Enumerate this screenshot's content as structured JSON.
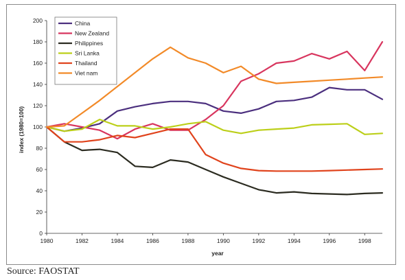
{
  "source_note": "Source: FAOSTAT",
  "chart_data": {
    "type": "line",
    "title": "",
    "xlabel": "year",
    "ylabel": "index (1980=100)",
    "ylim": [
      0,
      200
    ],
    "xlim": [
      1980,
      1999
    ],
    "yticks": [
      "0",
      "20",
      "40",
      "60",
      "80",
      "100",
      "120",
      "140",
      "160",
      "180",
      "200"
    ],
    "xticks": [
      "1980",
      "1982",
      "1984",
      "1986",
      "1988",
      "1990",
      "1992",
      "1994",
      "1996",
      "1998"
    ],
    "grid": false,
    "legend": "top-left",
    "x": [
      1980,
      1981,
      1982,
      1983,
      1984,
      1985,
      1986,
      1987,
      1988,
      1989,
      1990,
      1991,
      1992,
      1993,
      1994,
      1995,
      1996,
      1997,
      1998,
      1999
    ],
    "series": [
      {
        "name": "China",
        "color": "#4b2f7e",
        "values": [
          100,
          96,
          99,
          103,
          115,
          119,
          122,
          124,
          124,
          122,
          115,
          113,
          117,
          124,
          125,
          128,
          137,
          135,
          135,
          126
        ]
      },
      {
        "name": "New Zealand",
        "color": "#d8355e",
        "values": [
          100,
          103,
          100,
          97,
          89,
          98,
          103,
          97,
          97,
          107,
          120,
          143,
          150,
          160,
          162,
          169,
          164,
          171,
          153,
          180
        ]
      },
      {
        "name": "Philippines",
        "color": "#2b2b20",
        "values": [
          100,
          86,
          78,
          79,
          76,
          63,
          62,
          69,
          67,
          60,
          53,
          47,
          41,
          38,
          39,
          37.5,
          37,
          36.5,
          37.5,
          38
        ]
      },
      {
        "name": "Sri Lanka",
        "color": "#bccf19",
        "values": [
          100,
          96,
          98,
          107,
          101,
          101,
          98,
          100,
          103,
          105,
          97,
          94,
          97,
          98,
          99,
          102,
          102.5,
          103,
          93,
          94
        ]
      },
      {
        "name": "Thailand",
        "color": "#e0431c",
        "values": [
          100,
          86,
          86,
          88,
          92,
          90,
          94,
          98,
          98,
          74,
          66,
          61,
          59,
          58.5,
          58.5,
          58.5,
          59,
          59.5,
          60,
          60.5
        ]
      },
      {
        "name": "Viet nam",
        "color": "#f28a28",
        "values": [
          100,
          101,
          113,
          125,
          138,
          151,
          164,
          175,
          165,
          160,
          151,
          157,
          145,
          141,
          142,
          143,
          144,
          145,
          146,
          147
        ]
      }
    ]
  }
}
